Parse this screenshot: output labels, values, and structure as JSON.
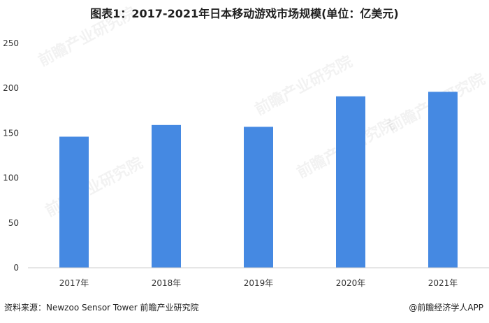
{
  "title": "图表1：2017-2021年日本移动游戏市场规模(单位：亿美元)",
  "source": "资料来源：Newzoo Sensor Tower 前瞻产业研究院",
  "credit": "@前瞻经济学人APP",
  "watermark": "前瞻产业研究院",
  "colors": {
    "bar": "#4589e2",
    "axis": "#cccccc",
    "text": "#333333"
  },
  "chart_data": {
    "type": "bar",
    "categories": [
      "2017年",
      "2018年",
      "2019年",
      "2020年",
      "2021年"
    ],
    "values": [
      146,
      159,
      157,
      191,
      196
    ],
    "yticks": [
      0,
      50,
      100,
      150,
      200,
      250
    ],
    "ylim": [
      0,
      250
    ],
    "grid": false,
    "xlabel": "",
    "ylabel": ""
  }
}
